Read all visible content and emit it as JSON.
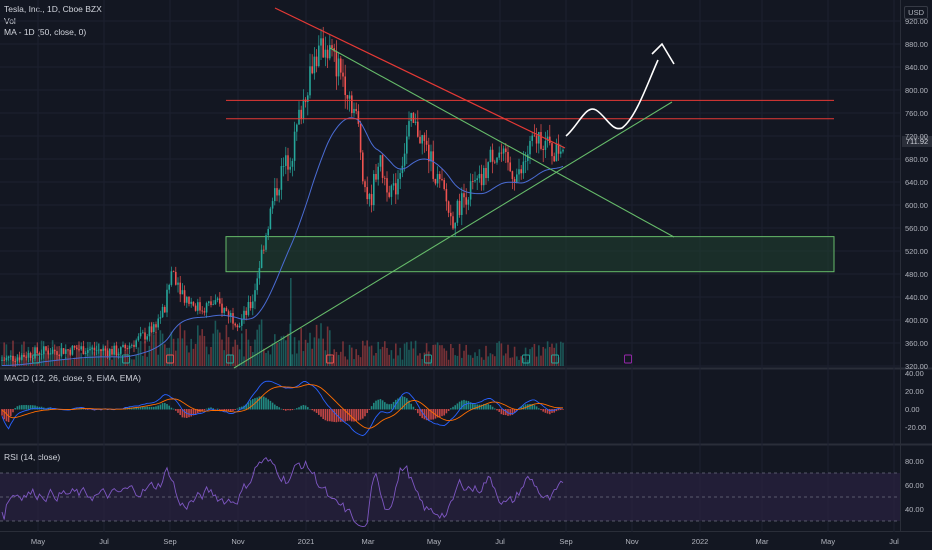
{
  "header": {
    "symbol_line": "Tesla, Inc., 1D, Cboe BZX",
    "vol_label": "Vol",
    "ma_label": "MA - 1D (50, close, 0)"
  },
  "currency_badge": "USD",
  "last_price_tag": "711.92",
  "price_axis": [
    "920.00",
    "880.00",
    "840.00",
    "800.00",
    "760.00",
    "720.00",
    "680.00",
    "640.00",
    "600.00",
    "560.00",
    "520.00",
    "480.00",
    "440.00",
    "400.00",
    "360.00",
    "320.00"
  ],
  "macd": {
    "label": "MACD (12, 26, close, 9, EMA, EMA)",
    "axis": [
      "40.00",
      "20.00",
      "0.00",
      "-20.00"
    ]
  },
  "rsi": {
    "label": "RSI (14, close)",
    "axis": [
      "80.00",
      "60.00",
      "40.00"
    ]
  },
  "time_axis": [
    "May",
    "Jul",
    "Sep",
    "Nov",
    "2021",
    "Mar",
    "May",
    "Jul",
    "Sep",
    "Nov",
    "2022",
    "Mar",
    "May",
    "Jul"
  ],
  "colors": {
    "background": "#131722",
    "up": "#26a69a",
    "down": "#ef5350",
    "ma": "#4a6cd4",
    "trend_red": "#e53935",
    "trend_green": "#66bb6a",
    "zone": "#1f3d2e",
    "rsi": "#7e57c2",
    "rsi_band": "#2a2240"
  },
  "chart_data": {
    "type": "candlestick",
    "symbol": "Tesla, Inc.",
    "interval": "1D",
    "y_range": [
      320,
      930
    ],
    "annotations": {
      "descending_resistance": [
        [
          880,
          700
        ]
      ],
      "horizontal_resistance": [
        782,
        750
      ],
      "support_zone": [
        484,
        545
      ],
      "ascending_support_start": 320,
      "ascending_support_end": 780,
      "projection_peak": 870
    },
    "approx_closes": [
      150,
      160,
      170,
      180,
      220,
      260,
      330,
      450,
      400,
      420,
      420,
      440,
      400,
      430,
      560,
      640,
      700,
      780,
      850,
      870,
      830,
      800,
      700,
      660,
      640,
      700,
      750,
      690,
      640,
      580,
      590,
      620,
      640,
      660,
      680,
      690,
      700,
      720,
      710,
      712
    ]
  }
}
